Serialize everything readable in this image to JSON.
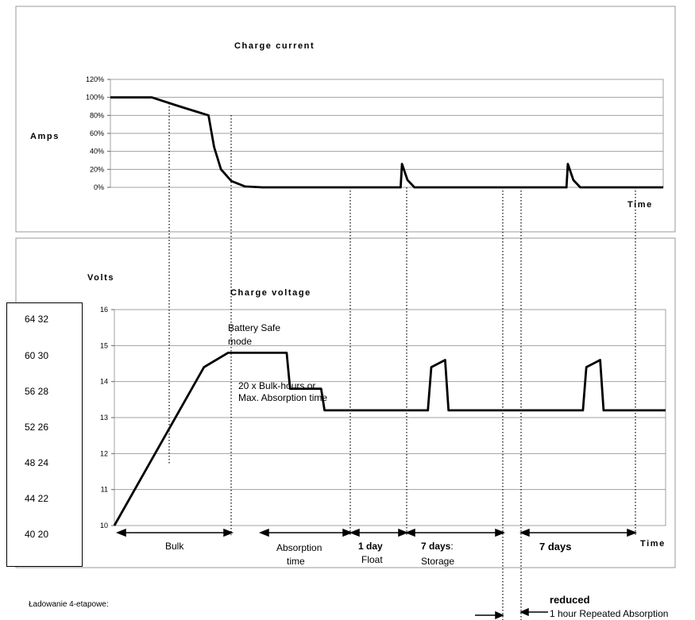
{
  "chart_data": [
    {
      "type": "line",
      "title": "Charge current",
      "ylabel": "Amps",
      "xlabel": "Time",
      "yticks": [
        "0%",
        "20%",
        "40%",
        "60%",
        "80%",
        "100%",
        "120%"
      ],
      "ylim": [
        0,
        120
      ],
      "grid": true,
      "series": [
        {
          "values": [
            [
              0,
              100
            ],
            [
              0.6,
              100
            ],
            [
              1.0,
              90
            ],
            [
              1.42,
              80
            ],
            [
              1.5,
              45
            ],
            [
              1.6,
              20
            ],
            [
              1.75,
              7
            ],
            [
              1.95,
              1
            ],
            [
              2.2,
              0
            ],
            [
              4.2,
              0
            ],
            [
              4.22,
              26
            ],
            [
              4.3,
              8
            ],
            [
              4.4,
              0
            ],
            [
              6.6,
              0
            ],
            [
              6.62,
              26
            ],
            [
              6.7,
              8
            ],
            [
              6.8,
              0
            ],
            [
              8.0,
              0
            ]
          ]
        }
      ]
    },
    {
      "type": "line",
      "title": "Charge voltage",
      "ylabel": "Volts",
      "xlabel": "Time",
      "yticks": [
        "10",
        "11",
        "12",
        "13",
        "14",
        "15",
        "16"
      ],
      "ylim": [
        10,
        16
      ],
      "grid": true,
      "series": [
        {
          "values": [
            [
              0,
              10.0
            ],
            [
              1.3,
              14.4
            ],
            [
              1.65,
              14.8
            ],
            [
              2.5,
              14.8
            ],
            [
              2.55,
              13.8
            ],
            [
              3.0,
              13.8
            ],
            [
              3.05,
              13.2
            ],
            [
              4.55,
              13.2
            ],
            [
              4.6,
              14.4
            ],
            [
              4.8,
              14.6
            ],
            [
              4.85,
              13.2
            ],
            [
              6.8,
              13.2
            ],
            [
              6.85,
              14.4
            ],
            [
              7.05,
              14.6
            ],
            [
              7.1,
              13.2
            ],
            [
              8.0,
              13.2
            ]
          ]
        }
      ]
    }
  ],
  "annotations": {
    "battery_safe_1": "Battery Safe",
    "battery_safe_2": "mode",
    "bulk_hours_1": "20 x Bulk-hours or",
    "bulk_hours_2": "Max. Absorption time"
  },
  "phases": {
    "bulk": "Bulk",
    "absorption_1": "Absorption",
    "absorption_2": "time",
    "float_days": "1 day",
    "float": "Float",
    "storage_days": "7 days",
    "storage_colon": ":",
    "storage": "Storage",
    "seven_days": "7 days",
    "reduced": "reduced",
    "repeated": "1 hour Repeated Absorption"
  },
  "side_scale": [
    "64 32",
    "60 30",
    "56 28",
    "52 26",
    "48 24",
    "44 22",
    "40 20"
  ],
  "footnote": "Ładowanie 4-etapowe:"
}
